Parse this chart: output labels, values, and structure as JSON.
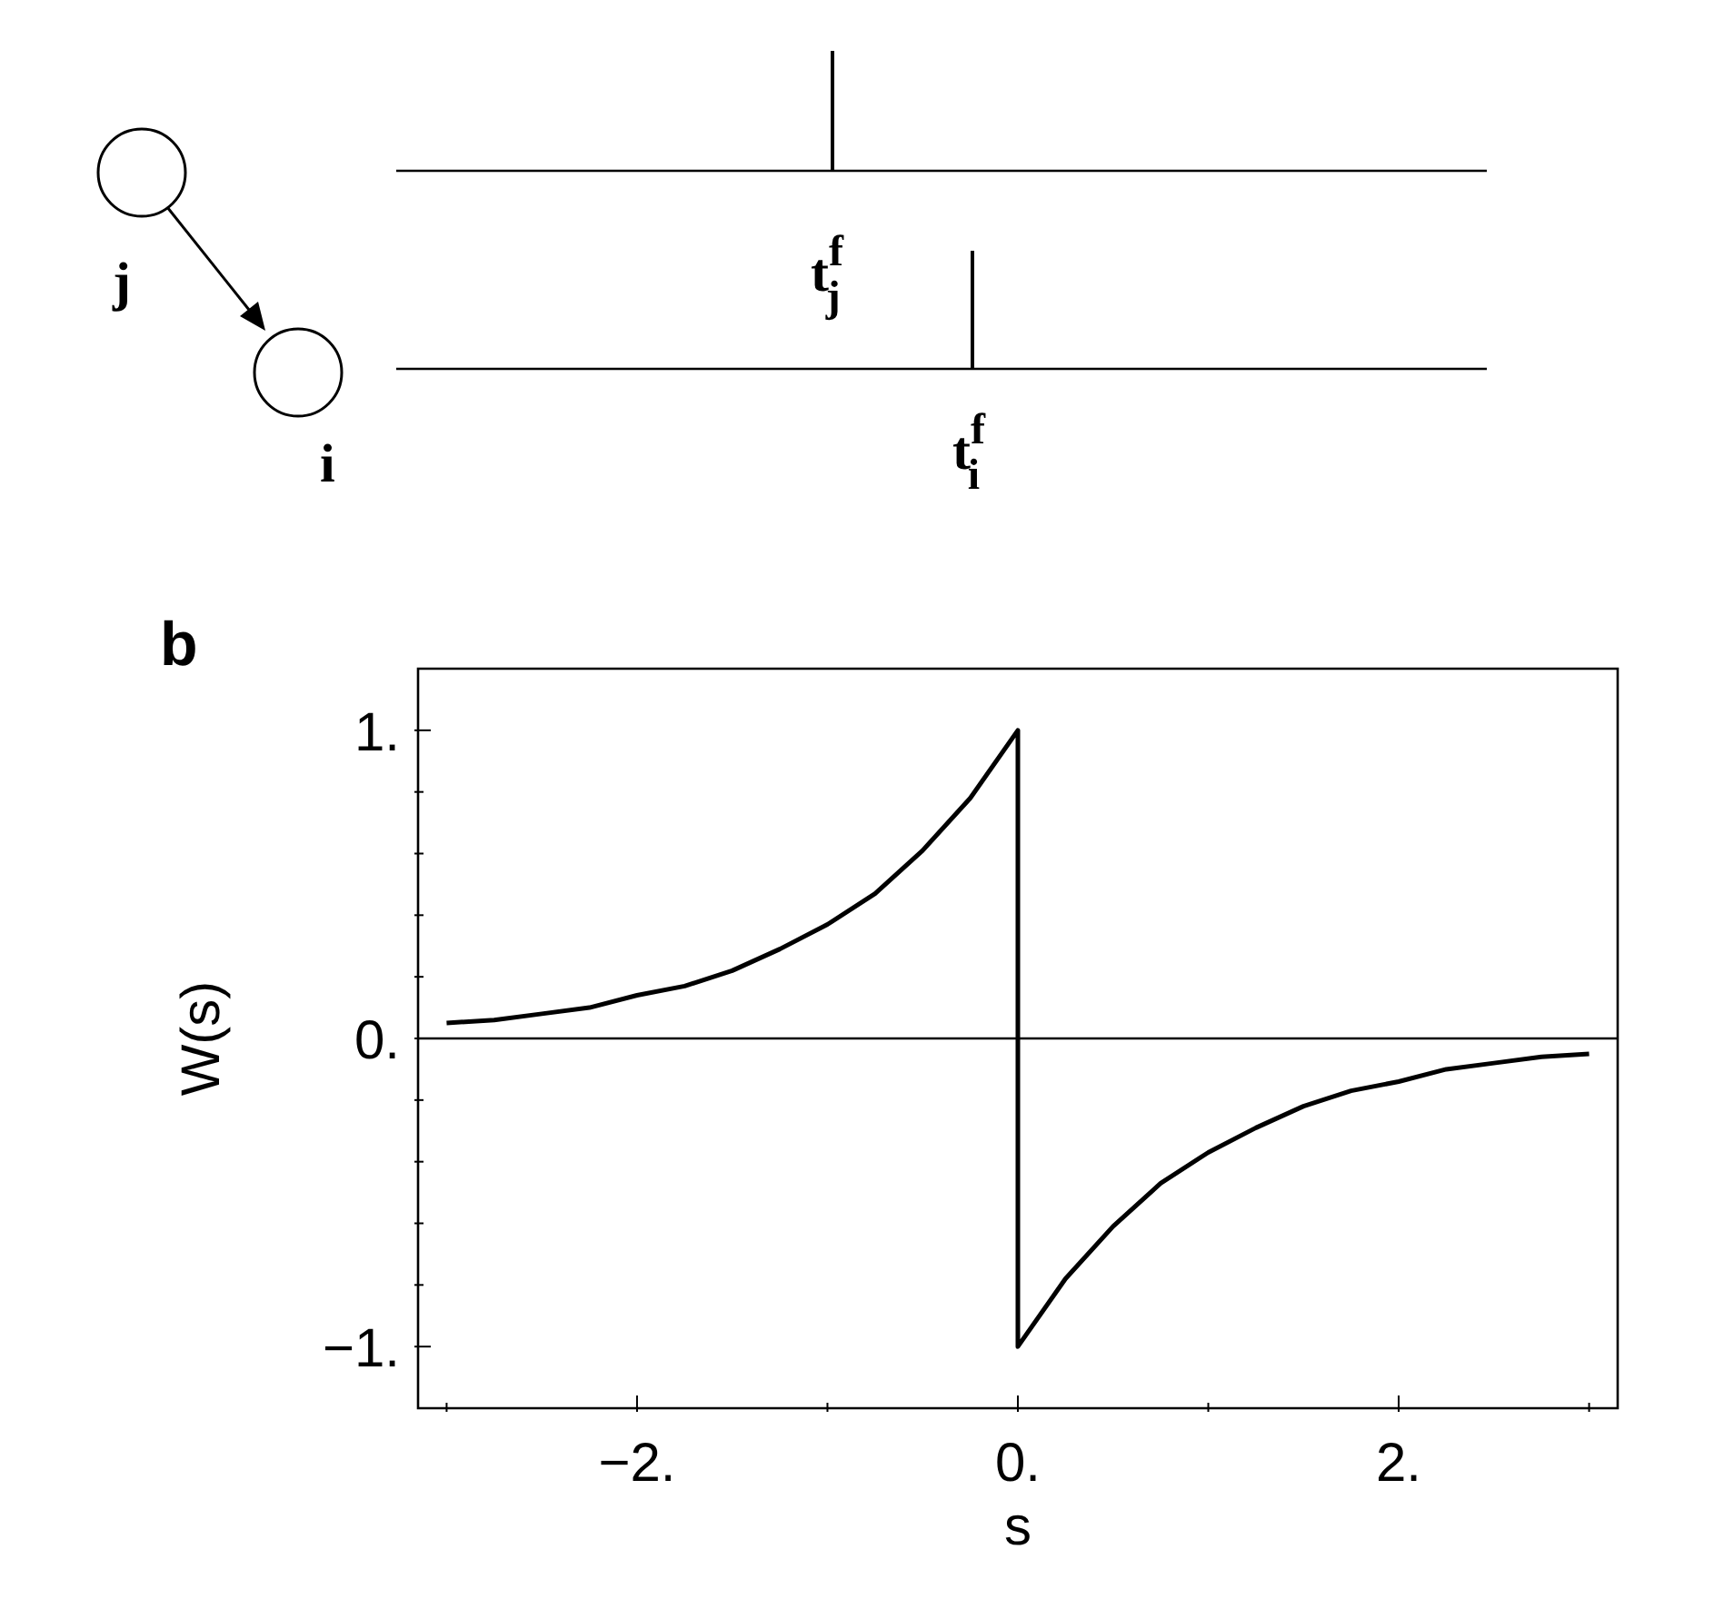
{
  "chart_data": {
    "type": "line",
    "xlabel": "s",
    "ylabel": "W(s)",
    "annotations": [
      "b",
      "j",
      "i",
      "t$^{f}$$_{j}$",
      "t$^{f}$$_{i}$"
    ],
    "x": [
      -3,
      -2.75,
      -2.5,
      -2.25,
      -2,
      -1.75,
      -1.5,
      -1.25,
      -1,
      -0.75,
      -0.5,
      -0.25,
      0,
      0,
      0.25,
      0.5,
      0.75,
      1,
      1.25,
      1.5,
      1.75,
      2,
      2.25,
      2.5,
      2.75,
      3
    ],
    "series": [
      {
        "color": "#000000",
        "values": [
          0.05,
          0.06,
          0.08,
          0.1,
          0.14,
          0.17,
          0.22,
          0.29,
          0.37,
          0.47,
          0.61,
          0.78,
          1,
          -1,
          -0.78,
          -0.61,
          -0.47,
          -0.37,
          -0.29,
          -0.22,
          -0.17,
          -0.14,
          -0.1,
          -0.08,
          -0.06,
          -0.05
        ]
      }
    ],
    "xlim": [
      -3.15,
      3.15
    ],
    "xticks": [
      {
        "value": -3,
        "label": null
      },
      {
        "value": -2,
        "label": "−2."
      },
      {
        "value": -1,
        "label": null
      },
      {
        "value": 0,
        "label": "0."
      },
      {
        "value": 1,
        "label": null
      },
      {
        "value": 2,
        "label": "2."
      },
      {
        "value": 3,
        "label": null
      }
    ],
    "ylim": [
      -1.2,
      1.2
    ],
    "yticks": [
      {
        "value": -1,
        "label": "−1."
      },
      {
        "value": -0.8,
        "label": null
      },
      {
        "value": -0.6,
        "label": null
      },
      {
        "value": -0.4,
        "label": null
      },
      {
        "value": -0.2,
        "label": null
      },
      {
        "value": 0,
        "label": "0."
      },
      {
        "value": 0.2,
        "label": null
      },
      {
        "value": 0.4,
        "label": null
      },
      {
        "value": 0.6,
        "label": null
      },
      {
        "value": 0.8,
        "label": null
      },
      {
        "value": 1,
        "label": "1."
      }
    ],
    "ref_lines": [
      {
        "axis": "y",
        "value": 0,
        "color": "#000000"
      }
    ],
    "marker": "none",
    "line_style": "solid"
  }
}
